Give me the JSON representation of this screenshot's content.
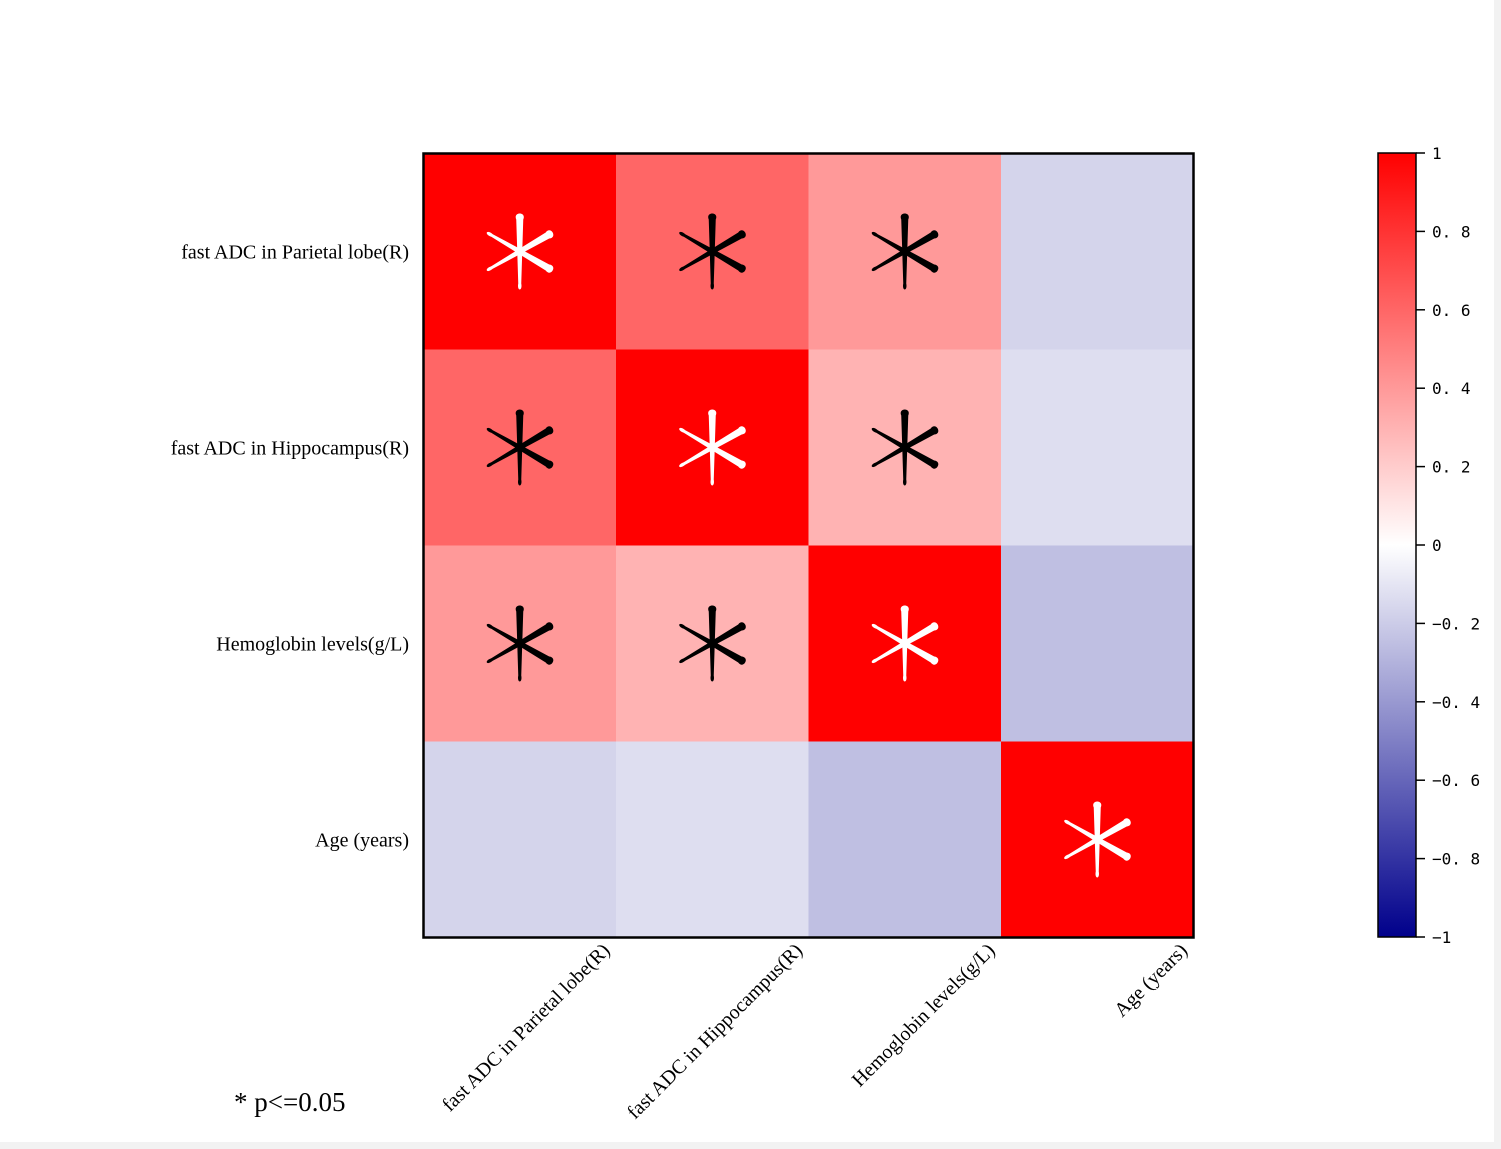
{
  "chart_data": {
    "type": "heatmap",
    "title": "",
    "row_labels": [
      "fast ADC in Parietal lobe(R)",
      "fast ADC in Hippocampus(R)",
      "Hemoglobin levels(g/L)",
      "Age (years)"
    ],
    "col_labels": [
      "fast ADC in Parietal lobe(R)",
      "fast ADC in Hippocampus(R)",
      "Hemoglobin levels(g/L)",
      "Age (years)"
    ],
    "values": [
      [
        1.0,
        0.6,
        0.4,
        -0.17
      ],
      [
        0.6,
        1.0,
        0.3,
        -0.13
      ],
      [
        0.4,
        0.3,
        1.0,
        -0.25
      ],
      [
        -0.17,
        -0.13,
        -0.25,
        1.0
      ]
    ],
    "significant": [
      [
        true,
        true,
        true,
        false
      ],
      [
        true,
        true,
        true,
        false
      ],
      [
        true,
        true,
        true,
        false
      ],
      [
        false,
        false,
        false,
        true
      ]
    ],
    "colorscale": {
      "min": -1,
      "max": 1,
      "low_color": "#00008b",
      "mid_color": "#ffffff",
      "high_color": "#ff0000",
      "tick_values": [
        1,
        0.8,
        0.6,
        0.4,
        0.2,
        0,
        -0.2,
        -0.4,
        -0.6,
        -0.8,
        -1
      ],
      "tick_labels": [
        "1",
        "0. 8",
        "0. 6",
        "0. 4",
        "0. 2",
        "0",
        "−0. 2",
        "−0. 4",
        "−0. 6",
        "−0. 8",
        "−1"
      ]
    },
    "marker_symbol": "*",
    "marker_colors": {
      "diagonal": "#ffffff",
      "off_diagonal": "#000000"
    }
  },
  "footnote": "* p<=0.05"
}
